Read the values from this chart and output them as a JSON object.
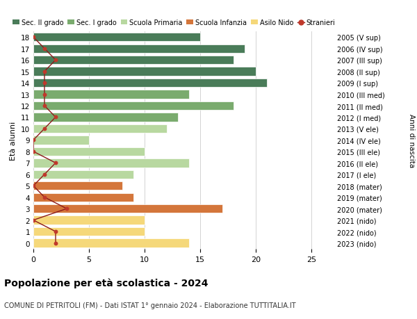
{
  "ages": [
    18,
    17,
    16,
    15,
    14,
    13,
    12,
    11,
    10,
    9,
    8,
    7,
    6,
    5,
    4,
    3,
    2,
    1,
    0
  ],
  "right_labels": [
    "2005 (V sup)",
    "2006 (IV sup)",
    "2007 (III sup)",
    "2008 (II sup)",
    "2009 (I sup)",
    "2010 (III med)",
    "2011 (II med)",
    "2012 (I med)",
    "2013 (V ele)",
    "2014 (IV ele)",
    "2015 (III ele)",
    "2016 (II ele)",
    "2017 (I ele)",
    "2018 (mater)",
    "2019 (mater)",
    "2020 (mater)",
    "2021 (nido)",
    "2022 (nido)",
    "2023 (nido)"
  ],
  "bar_values": [
    15,
    19,
    18,
    20,
    21,
    14,
    18,
    13,
    12,
    5,
    10,
    14,
    9,
    8,
    9,
    17,
    10,
    10,
    14
  ],
  "bar_colors": [
    "#4a7c59",
    "#4a7c59",
    "#4a7c59",
    "#4a7c59",
    "#4a7c59",
    "#7aab6e",
    "#7aab6e",
    "#7aab6e",
    "#b8d8a0",
    "#b8d8a0",
    "#b8d8a0",
    "#b8d8a0",
    "#b8d8a0",
    "#d4763b",
    "#d4763b",
    "#d4763b",
    "#f5d87a",
    "#f5d87a",
    "#f5d87a"
  ],
  "stranieri_values": [
    0,
    1,
    2,
    1,
    1,
    1,
    1,
    2,
    1,
    0,
    0,
    2,
    1,
    0,
    1,
    3,
    0,
    2,
    2
  ],
  "title": "Popolazione per età scolastica - 2024",
  "subtitle": "COMUNE DI PETRITOLI (FM) - Dati ISTAT 1° gennaio 2024 - Elaborazione TUTTITALIA.IT",
  "ylabel": "Età alunni",
  "right_ylabel": "Anni di nascita",
  "xlim": [
    0,
    27
  ],
  "legend_labels": [
    "Sec. II grado",
    "Sec. I grado",
    "Scuola Primaria",
    "Scuola Infanzia",
    "Asilo Nido",
    "Stranieri"
  ],
  "legend_colors": [
    "#4a7c59",
    "#7aab6e",
    "#b8d8a0",
    "#d4763b",
    "#f5d87a",
    "#c0392b"
  ],
  "stranieri_color": "#c0392b",
  "stranieri_line_color": "#8b1a1a",
  "bg_color": "#ffffff",
  "grid_color": "#cccccc"
}
